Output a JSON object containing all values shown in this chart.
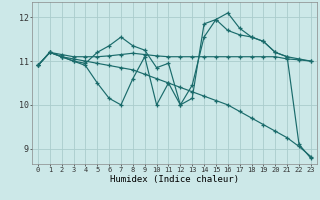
{
  "xlabel": "Humidex (Indice chaleur)",
  "background_color": "#cce8e8",
  "grid_color": "#aacccc",
  "line_color": "#1a6b6b",
  "ylim": [
    8.65,
    12.35
  ],
  "xlim": [
    -0.5,
    23.5
  ],
  "yticks": [
    9,
    10,
    11,
    12
  ],
  "xticks": [
    0,
    1,
    2,
    3,
    4,
    5,
    6,
    7,
    8,
    9,
    10,
    11,
    12,
    13,
    14,
    15,
    16,
    17,
    18,
    19,
    20,
    21,
    22,
    23
  ],
  "series": [
    [
      10.9,
      11.2,
      11.1,
      11.05,
      11.0,
      10.95,
      10.9,
      10.85,
      10.8,
      10.7,
      10.6,
      10.5,
      10.4,
      10.3,
      10.2,
      10.1,
      10.0,
      9.85,
      9.7,
      9.55,
      9.4,
      9.25,
      9.05,
      8.82
    ],
    [
      10.9,
      11.2,
      11.15,
      11.1,
      11.1,
      11.1,
      11.12,
      11.15,
      11.18,
      11.15,
      11.12,
      11.1,
      11.1,
      11.1,
      11.1,
      11.1,
      11.1,
      11.1,
      11.1,
      11.1,
      11.1,
      11.05,
      11.03,
      11.0
    ],
    [
      10.9,
      11.2,
      11.1,
      11.0,
      10.95,
      11.2,
      11.35,
      11.55,
      11.35,
      11.25,
      10.85,
      10.95,
      10.0,
      10.15,
      11.85,
      11.95,
      11.7,
      11.6,
      11.55,
      11.45,
      11.2,
      11.1,
      11.05,
      11.0
    ],
    [
      10.9,
      11.2,
      11.1,
      11.0,
      10.9,
      10.5,
      10.15,
      10.0,
      10.6,
      11.1,
      10.0,
      10.5,
      10.0,
      10.45,
      11.55,
      11.95,
      12.1,
      11.75,
      11.55,
      11.45,
      11.2,
      11.1,
      9.1,
      8.78
    ]
  ]
}
